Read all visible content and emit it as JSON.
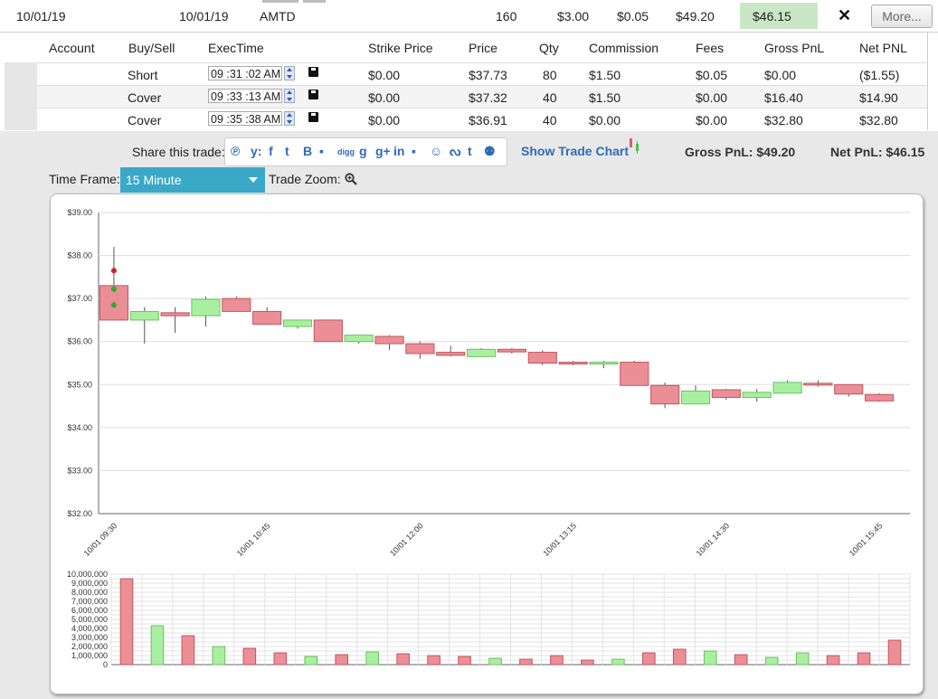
{
  "summary": {
    "open_date": "10/01/19",
    "close_date": "10/01/19",
    "symbol": "AMTD",
    "volume": "160",
    "commission": "$3.00",
    "fees": "$0.05",
    "gross_pnl": "$49.20",
    "net_pnl": "$46.15",
    "close_icon": "close-icon",
    "close_label": "✕",
    "more_label": "More..."
  },
  "details": {
    "headers": {
      "account": "Account",
      "buy_sell": "Buy/Sell",
      "exec_time": "ExecTime",
      "strike": "Strike Price",
      "price": "Price",
      "qty": "Qty",
      "commission": "Commission",
      "fees": "Fees",
      "gross": "Gross PnL",
      "net": "Net PNL"
    },
    "rows": [
      {
        "side": "Short",
        "time": "09 :31 :02 AM",
        "strike": "$0.00",
        "price": "$37.73",
        "qty": "80",
        "commission": "$1.50",
        "fees": "$0.05",
        "gross": "$0.00",
        "net": "($1.55)"
      },
      {
        "side": "Cover",
        "time": "09 :33 :13 AM",
        "strike": "$0.00",
        "price": "$37.32",
        "qty": "40",
        "commission": "$1.50",
        "fees": "$0.00",
        "gross": "$16.40",
        "net": "$14.90"
      },
      {
        "side": "Cover",
        "time": "09 :35 :38 AM",
        "strike": "$0.00",
        "price": "$36.91",
        "qty": "40",
        "commission": "$0.00",
        "fees": "$0.00",
        "gross": "$32.80",
        "net": "$32.80"
      }
    ]
  },
  "share": {
    "label": "Share this trade:",
    "icons": [
      "pinterest-icon",
      "yahoo-icon",
      "facebook-icon",
      "twitter-icon",
      "blogger-icon",
      "delicious-icon",
      "digg-icon",
      "google-icon",
      "googleplus-icon",
      "linkedin-icon",
      "myspace-icon",
      "reddit-icon",
      "stumbleupon-icon",
      "tumblr-icon",
      "people-icon"
    ],
    "glyphs": [
      "℗",
      "y:",
      "f",
      "t",
      "B",
      "▪",
      "digg",
      "g",
      "g+",
      "in",
      "▪",
      "☺",
      "ᔓ",
      "t",
      "⚉"
    ]
  },
  "show_chart_label": "Show Trade Chart",
  "gross_pnl_total": "Gross PnL: $49.20",
  "net_pnl_total": "Net PnL: $46.15",
  "timeframe": {
    "label": "Time Frame:",
    "selected": "15 Minute",
    "zoom_label": "Trade Zoom:",
    "zoom_icon": "zoom-in-icon"
  },
  "colors": {
    "up": "#a8f0a0",
    "down": "#eb8e96",
    "accent": "#3aa9c8",
    "link": "#2f6bb5",
    "net_highlight": "#c9e7c4"
  },
  "chart_data": [
    {
      "type": "candlestick",
      "y_ticks": [
        "$39.00",
        "$38.00",
        "$37.00",
        "$36.00",
        "$35.00",
        "$34.00",
        "$33.00",
        "$32.00"
      ],
      "ylim": [
        32,
        39
      ],
      "x_tick_labels": [
        "10/01 09:30",
        "10/01 10:45",
        "10/01 12:00",
        "10/01 13:15",
        "10/01 14:30",
        "10/01 15:45"
      ],
      "x_tick_index": [
        0,
        5,
        10,
        15,
        20,
        25
      ],
      "candles": [
        {
          "o": 37.3,
          "h": 38.2,
          "l": 36.5,
          "c": 36.5
        },
        {
          "o": 36.5,
          "h": 36.8,
          "l": 35.95,
          "c": 36.7
        },
        {
          "o": 36.67,
          "h": 36.8,
          "l": 36.2,
          "c": 36.6
        },
        {
          "o": 36.6,
          "h": 37.05,
          "l": 36.35,
          "c": 36.98
        },
        {
          "o": 37.0,
          "h": 37.05,
          "l": 36.7,
          "c": 36.7
        },
        {
          "o": 36.7,
          "h": 36.8,
          "l": 36.4,
          "c": 36.4
        },
        {
          "o": 36.35,
          "h": 36.5,
          "l": 36.3,
          "c": 36.5
        },
        {
          "o": 36.5,
          "h": 36.5,
          "l": 36.0,
          "c": 36.0
        },
        {
          "o": 36.0,
          "h": 36.15,
          "l": 35.95,
          "c": 36.15
        },
        {
          "o": 36.12,
          "h": 36.15,
          "l": 35.8,
          "c": 35.95
        },
        {
          "o": 35.95,
          "h": 36.0,
          "l": 35.6,
          "c": 35.72
        },
        {
          "o": 35.75,
          "h": 35.9,
          "l": 35.65,
          "c": 35.68
        },
        {
          "o": 35.65,
          "h": 35.85,
          "l": 35.65,
          "c": 35.82
        },
        {
          "o": 35.82,
          "h": 35.85,
          "l": 35.72,
          "c": 35.76
        },
        {
          "o": 35.75,
          "h": 35.8,
          "l": 35.45,
          "c": 35.5
        },
        {
          "o": 35.52,
          "h": 35.55,
          "l": 35.45,
          "c": 35.48
        },
        {
          "o": 35.48,
          "h": 35.55,
          "l": 35.38,
          "c": 35.52
        },
        {
          "o": 35.52,
          "h": 35.55,
          "l": 34.98,
          "c": 34.98
        },
        {
          "o": 34.98,
          "h": 35.05,
          "l": 34.45,
          "c": 34.55
        },
        {
          "o": 34.55,
          "h": 34.98,
          "l": 34.55,
          "c": 34.85
        },
        {
          "o": 34.88,
          "h": 34.9,
          "l": 34.65,
          "c": 34.7
        },
        {
          "o": 34.7,
          "h": 34.9,
          "l": 34.6,
          "c": 34.82
        },
        {
          "o": 34.8,
          "h": 35.1,
          "l": 34.8,
          "c": 35.05
        },
        {
          "o": 35.03,
          "h": 35.1,
          "l": 34.95,
          "c": 35.0
        },
        {
          "o": 35.0,
          "h": 35.0,
          "l": 34.72,
          "c": 34.78
        },
        {
          "o": 34.77,
          "h": 34.8,
          "l": 34.6,
          "c": 34.62
        }
      ],
      "trade_markers": [
        {
          "index": 0,
          "price": 37.65,
          "side": "sell"
        },
        {
          "index": 0,
          "price": 37.22,
          "side": "buy"
        },
        {
          "index": 0,
          "price": 36.85,
          "side": "buy"
        }
      ]
    },
    {
      "type": "bar",
      "y_ticks": [
        "10,000,000",
        "9,000,000",
        "8,000,000",
        "7,000,000",
        "6,000,000",
        "5,000,000",
        "4,000,000",
        "3,000,000",
        "2,000,000",
        "1,000,000",
        "0"
      ],
      "ylim": [
        0,
        10000000
      ],
      "values": [
        9500000,
        4300000,
        3200000,
        2000000,
        1800000,
        1300000,
        900000,
        1100000,
        1400000,
        1200000,
        1000000,
        900000,
        700000,
        600000,
        1000000,
        500000,
        600000,
        1300000,
        1700000,
        1500000,
        1100000,
        800000,
        1300000,
        1000000,
        1300000,
        2700000
      ],
      "up": [
        false,
        true,
        false,
        true,
        false,
        false,
        true,
        false,
        true,
        false,
        false,
        false,
        true,
        false,
        false,
        false,
        true,
        false,
        false,
        true,
        false,
        true,
        true,
        false,
        false,
        false
      ]
    }
  ]
}
